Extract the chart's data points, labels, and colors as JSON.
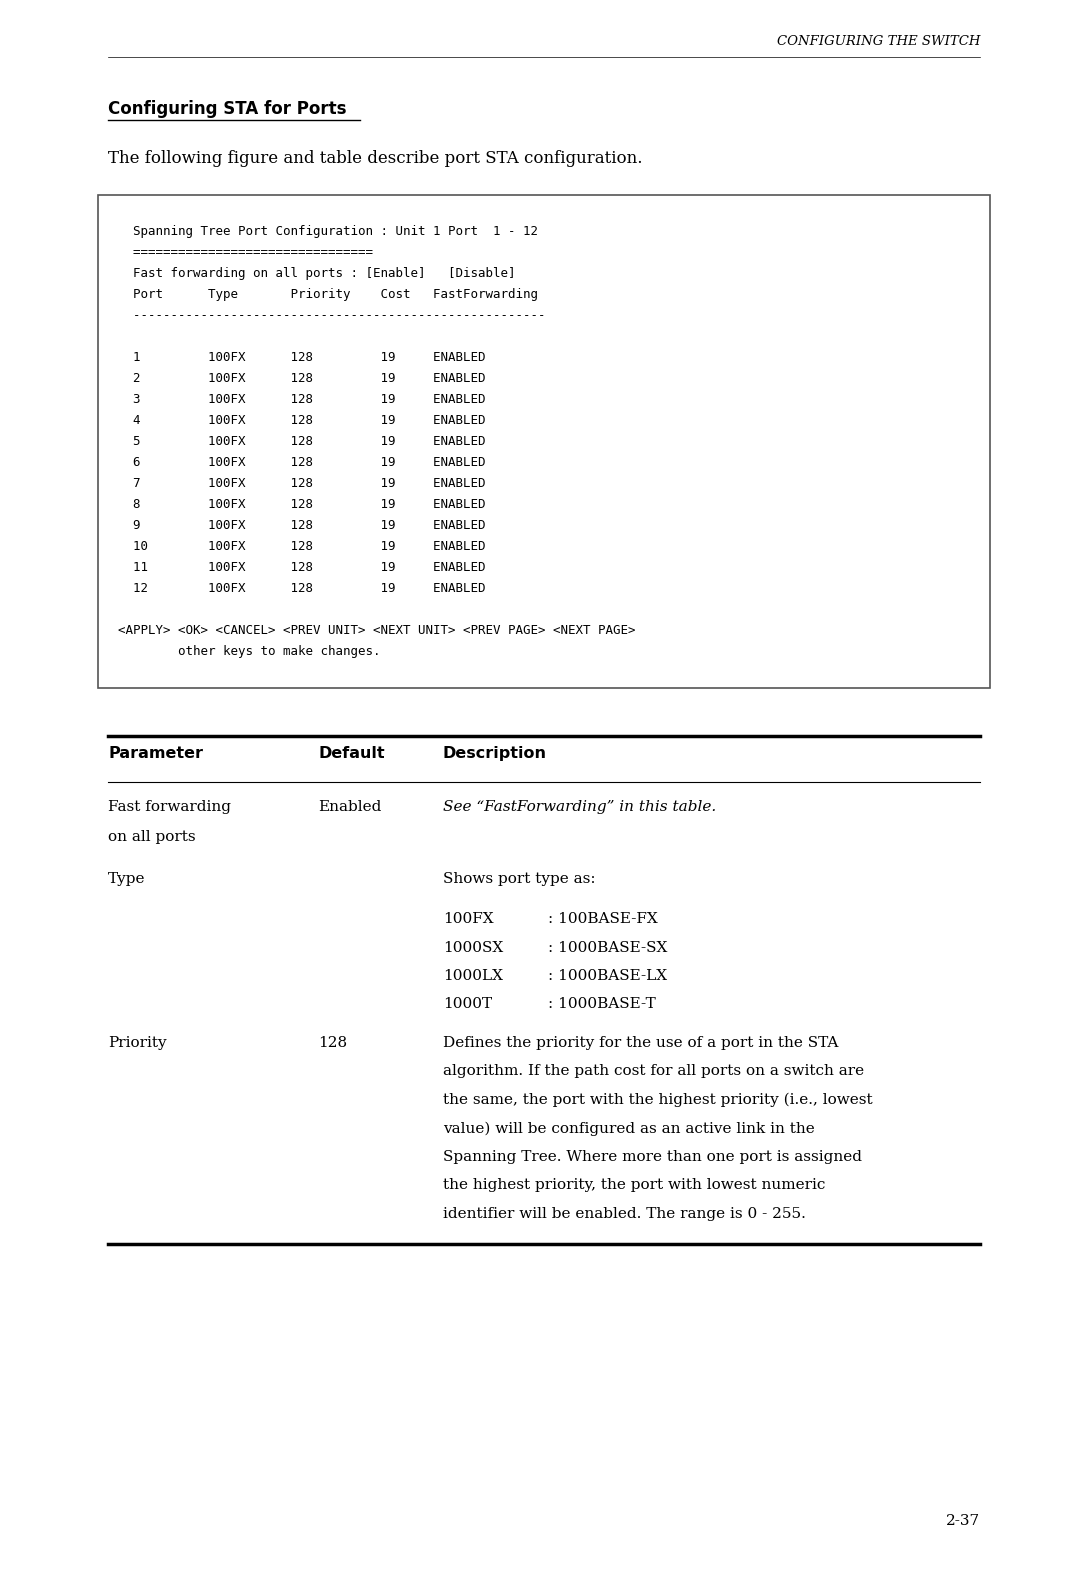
{
  "header_title": "CONFIGURING THE SWITCH",
  "section_title": "Configuring STA for Ports",
  "intro_text": "The following figure and table describe port STA configuration.",
  "terminal_lines": [
    "    Spanning Tree Port Configuration : Unit 1 Port  1 - 12",
    "    ================================",
    "    Fast forwarding on all ports : [Enable]   [Disable]",
    "    Port      Type       Priority    Cost   FastForwarding",
    "    -------------------------------------------------------",
    "",
    "    1         100FX      128         19     ENABLED",
    "    2         100FX      128         19     ENABLED",
    "    3         100FX      128         19     ENABLED",
    "    4         100FX      128         19     ENABLED",
    "    5         100FX      128         19     ENABLED",
    "    6         100FX      128         19     ENABLED",
    "    7         100FX      128         19     ENABLED",
    "    8         100FX      128         19     ENABLED",
    "    9         100FX      128         19     ENABLED",
    "    10        100FX      128         19     ENABLED",
    "    11        100FX      128         19     ENABLED",
    "    12        100FX      128         19     ENABLED",
    "",
    "  <APPLY> <OK> <CANCEL> <PREV UNIT> <NEXT UNIT> <PREV PAGE> <NEXT PAGE>",
    "          other keys to make changes."
  ],
  "table_headers": [
    "Parameter",
    "Default",
    "Description"
  ],
  "page_number": "2-37",
  "bg_color": "#ffffff",
  "text_color": "#000000"
}
